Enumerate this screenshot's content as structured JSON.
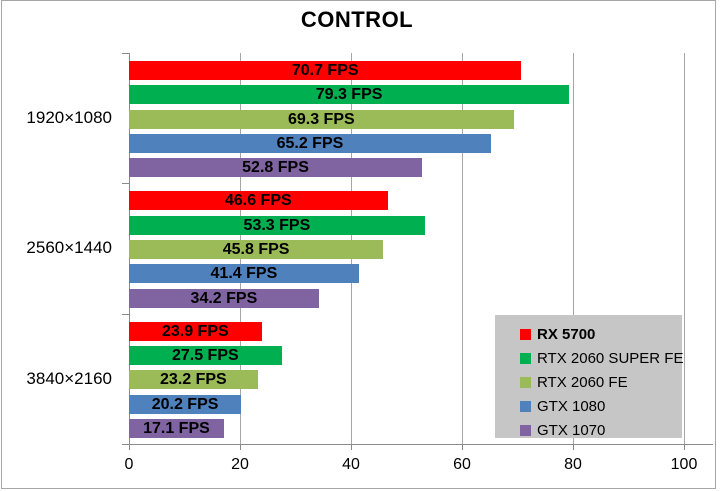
{
  "chart_data": {
    "type": "bar",
    "orientation": "horizontal",
    "title": "CONTROL",
    "categories": [
      "1920×1080",
      "2560×1440",
      "3840×2160"
    ],
    "series": [
      {
        "name": "RX 5700",
        "color": "#FF0000",
        "bold": true,
        "values": [
          70.7,
          46.6,
          23.9
        ]
      },
      {
        "name": "RTX 2060 SUPER FE",
        "color": "#00B050",
        "bold": false,
        "values": [
          79.3,
          53.3,
          27.5
        ]
      },
      {
        "name": "RTX 2060 FE",
        "color": "#9BBB59",
        "bold": false,
        "values": [
          69.3,
          45.8,
          23.2
        ]
      },
      {
        "name": "GTX 1080",
        "color": "#4F81BD",
        "bold": false,
        "values": [
          65.2,
          41.4,
          20.2
        ]
      },
      {
        "name": "GTX 1070",
        "color": "#8064A2",
        "bold": false,
        "values": [
          52.8,
          34.2,
          17.1
        ]
      }
    ],
    "value_suffix": " FPS",
    "label_decimals": 1,
    "xlim": [
      0,
      100
    ],
    "x_ticks": [
      0,
      20,
      40,
      60,
      80,
      100
    ],
    "grid": true,
    "legend_position": "inside-bottom-right"
  },
  "styles": {
    "legend_bg": "#C6C6C6",
    "grid_color": "#A6A6A6",
    "axis_color": "#8A8A8A",
    "text_color": "#000000",
    "border_color": "#A6A6A6"
  }
}
